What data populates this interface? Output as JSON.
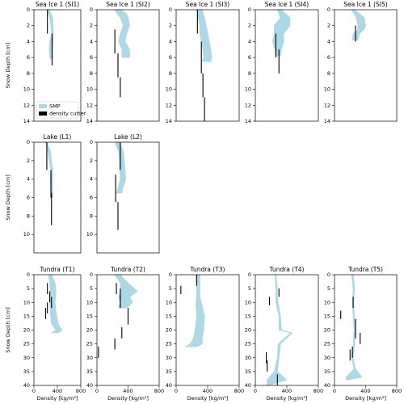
{
  "chart_data": [
    {
      "type": "profile",
      "title": "Sea Ice 1 (SI1)",
      "ylabel": "Snow Depth [cm]",
      "xlim": [
        0,
        800
      ],
      "ylim": [
        0,
        14
      ],
      "yticks": [
        0,
        2,
        4,
        6,
        8,
        10,
        12,
        14
      ],
      "legend": "lower left",
      "series": [
        {
          "name": "SMP",
          "color": "#add8e6",
          "depth": [
            0,
            1,
            2,
            3,
            4,
            5,
            6,
            6.2
          ],
          "low": [
            230,
            270,
            290,
            300,
            270,
            260,
            270,
            280
          ],
          "high": [
            260,
            320,
            330,
            330,
            330,
            320,
            320,
            310
          ]
        }
      ],
      "cutter": {
        "name": "density cutter",
        "color": "#000000",
        "values": [
          230,
          310
        ],
        "top": [
          0,
          3
        ],
        "bottom": [
          3,
          7
        ]
      }
    },
    {
      "type": "profile",
      "title": "Sea Ice 1 (SI2)",
      "xlim": [
        0,
        800
      ],
      "ylim": [
        0,
        14
      ],
      "yticks": [
        0,
        2,
        4,
        6,
        8,
        10,
        12,
        14
      ],
      "series": [
        {
          "color": "#add8e6",
          "depth": [
            0,
            0.5,
            1,
            2,
            3,
            4,
            5,
            6
          ],
          "low": [
            230,
            260,
            300,
            340,
            300,
            280,
            320,
            320
          ],
          "high": [
            300,
            380,
            400,
            420,
            380,
            360,
            420,
            420
          ]
        }
      ],
      "cutter": {
        "color": "#000000",
        "values": [
          230,
          270,
          300
        ],
        "top": [
          2.5,
          5.5,
          8.5
        ],
        "bottom": [
          5.5,
          8.5,
          11
        ]
      }
    },
    {
      "type": "profile",
      "title": "Sea Ice 1 (SI3)",
      "xlim": [
        0,
        800
      ],
      "ylim": [
        0,
        14
      ],
      "yticks": [
        0,
        2,
        4,
        6,
        8,
        10,
        12,
        14
      ],
      "series": [
        {
          "color": "#add8e6",
          "depth": [
            0,
            1,
            2,
            3,
            4,
            5,
            6,
            6.5
          ],
          "low": [
            260,
            280,
            300,
            300,
            320,
            340,
            350,
            330
          ],
          "high": [
            330,
            360,
            380,
            400,
            420,
            440,
            450,
            440
          ]
        }
      ],
      "cutter": {
        "color": "#000000",
        "values": [
          270,
          320,
          340,
          360
        ],
        "top": [
          0,
          4,
          8,
          11
        ],
        "bottom": [
          3,
          8,
          11,
          14
        ]
      }
    },
    {
      "type": "profile",
      "title": "Sea Ice 1 (SI4)",
      "xlim": [
        0,
        800
      ],
      "ylim": [
        0,
        14
      ],
      "yticks": [
        0,
        2,
        4,
        6,
        8,
        10,
        12,
        14
      ],
      "series": [
        {
          "color": "#add8e6",
          "depth": [
            0,
            1,
            2,
            3,
            4,
            5,
            5.8
          ],
          "low": [
            280,
            320,
            240,
            240,
            220,
            250,
            260
          ],
          "high": [
            330,
            440,
            440,
            360,
            360,
            330,
            320
          ]
        }
      ],
      "cutter": {
        "color": "#000000",
        "values": [
          260,
          300
        ],
        "top": [
          3,
          5
        ],
        "bottom": [
          6,
          8
        ]
      }
    },
    {
      "type": "profile",
      "title": "Sea Ice 1 (SI5)",
      "xlim": [
        0,
        800
      ],
      "ylim": [
        0,
        14
      ],
      "yticks": [
        0,
        2,
        4,
        6,
        8,
        10,
        12,
        14
      ],
      "series": [
        {
          "color": "#add8e6",
          "depth": [
            0,
            1,
            2,
            2.5,
            3,
            3.8
          ],
          "low": [
            220,
            280,
            300,
            300,
            240,
            230
          ],
          "high": [
            260,
            380,
            400,
            380,
            320,
            300
          ]
        }
      ],
      "cutter": {
        "color": "#000000",
        "values": [
          270
        ],
        "top": [
          2
        ],
        "bottom": [
          4
        ]
      }
    },
    {
      "type": "profile",
      "title": "Lake (L1)",
      "ylabel": "Snow Depth [cm]",
      "xlim": [
        0,
        800
      ],
      "ylim": [
        0,
        12
      ],
      "yticks": [
        0,
        2,
        4,
        6,
        8,
        10
      ],
      "series": [
        {
          "color": "#add8e6",
          "depth": [
            0,
            1,
            2,
            3,
            4,
            5,
            6
          ],
          "low": [
            200,
            240,
            260,
            290,
            280,
            290,
            290
          ],
          "high": [
            220,
            280,
            300,
            320,
            320,
            320,
            320
          ]
        }
      ],
      "cutter": {
        "color": "#000000",
        "values": [
          220,
          290,
          300
        ],
        "top": [
          0,
          3,
          5.5
        ],
        "bottom": [
          3,
          6,
          9
        ]
      }
    },
    {
      "type": "profile",
      "title": "Lake (L2)",
      "xlim": [
        0,
        800
      ],
      "ylim": [
        0,
        12
      ],
      "yticks": [
        0,
        2,
        4,
        6,
        8,
        10
      ],
      "series": [
        {
          "color": "#add8e6",
          "depth": [
            0,
            1,
            2,
            3,
            4,
            5,
            5.5
          ],
          "low": [
            230,
            280,
            290,
            290,
            300,
            270,
            250
          ],
          "high": [
            290,
            340,
            350,
            360,
            370,
            330,
            320
          ]
        }
      ],
      "cutter": {
        "color": "#000000",
        "values": [
          300,
          240,
          270
        ],
        "top": [
          0,
          3.5,
          6.5
        ],
        "bottom": [
          3,
          6.5,
          9.5
        ]
      }
    },
    {
      "type": "profile",
      "title": "Tundra (T1)",
      "ylabel": "Snow Depth [cm]",
      "xlabel": "Density [kg/m³]",
      "xlim": [
        0,
        800
      ],
      "xticks": [
        0,
        400,
        800
      ],
      "ylim": [
        0,
        40
      ],
      "yticks": [
        0,
        5,
        10,
        15,
        20,
        25,
        30,
        35,
        40
      ],
      "series": [
        {
          "color": "#add8e6",
          "depth": [
            0,
            3,
            6,
            10,
            14,
            18,
            20,
            21
          ],
          "low": [
            250,
            270,
            280,
            270,
            280,
            300,
            380,
            300
          ],
          "high": [
            300,
            360,
            380,
            360,
            380,
            420,
            480,
            420
          ]
        }
      ],
      "cutter": {
        "color": "#000000",
        "values": [
          230,
          270,
          300,
          230,
          200
        ],
        "top": [
          3,
          6,
          8,
          10,
          12
        ],
        "bottom": [
          7,
          10,
          12,
          14,
          16
        ]
      }
    },
    {
      "type": "profile",
      "title": "Tundra (T2)",
      "xlabel": "Density [kg/m³]",
      "xlim": [
        0,
        800
      ],
      "xticks": [
        0,
        400,
        800
      ],
      "ylim": [
        0,
        40
      ],
      "yticks": [
        0,
        5,
        10,
        15,
        20,
        25,
        30,
        35,
        40
      ],
      "series": [
        {
          "color": "#add8e6",
          "depth": [
            0,
            3,
            6,
            8,
            10,
            12
          ],
          "low": [
            230,
            300,
            300,
            280,
            300,
            280
          ],
          "high": [
            300,
            400,
            520,
            420,
            460,
            380
          ]
        }
      ],
      "cutter": {
        "color": "#000000",
        "values": [
          250,
          300,
          300,
          400,
          320,
          230,
          20
        ],
        "top": [
          3,
          5,
          8,
          12,
          19,
          23,
          26
        ],
        "bottom": [
          7,
          9,
          12,
          18,
          23,
          27,
          30
        ]
      }
    },
    {
      "type": "profile",
      "title": "Tundra (T3)",
      "xlabel": "Density [kg/m³]",
      "xlim": [
        0,
        800
      ],
      "xticks": [
        0,
        400,
        800
      ],
      "ylim": [
        0,
        40
      ],
      "yticks": [
        0,
        5,
        10,
        15,
        20,
        25,
        30,
        35,
        40
      ],
      "series": [
        {
          "color": "#add8e6",
          "depth": [
            0,
            4,
            8,
            10,
            15,
            20,
            23,
            25,
            26
          ],
          "low": [
            260,
            260,
            260,
            250,
            260,
            240,
            220,
            180,
            120
          ],
          "high": [
            300,
            300,
            300,
            320,
            360,
            350,
            330,
            330,
            260
          ]
        }
      ],
      "cutter": {
        "color": "#000000",
        "values": [
          260,
          60
        ],
        "top": [
          0,
          4
        ],
        "bottom": [
          4,
          7
        ]
      }
    },
    {
      "type": "profile",
      "title": "Tundra (T4)",
      "xlabel": "Density [kg/m³]",
      "xlim": [
        0,
        800
      ],
      "xticks": [
        0,
        400,
        800
      ],
      "ylim": [
        0,
        40
      ],
      "yticks": [
        0,
        5,
        10,
        15,
        20,
        25,
        30,
        35,
        40
      ],
      "series": [
        {
          "color": "#add8e6",
          "depth": [
            0,
            5,
            8,
            10,
            15,
            20,
            21,
            25,
            30,
            35,
            38,
            40
          ],
          "low": [
            250,
            260,
            260,
            260,
            300,
            300,
            450,
            290,
            280,
            240,
            150,
            150
          ],
          "high": [
            260,
            280,
            280,
            290,
            320,
            330,
            470,
            320,
            300,
            280,
            400,
            170
          ]
        }
      ],
      "cutter": {
        "color": "#000000",
        "values": [
          300,
          180,
          140,
          150,
          280
        ],
        "top": [
          5,
          8,
          28,
          31,
          36
        ],
        "bottom": [
          8,
          11,
          32,
          35,
          40
        ]
      }
    },
    {
      "type": "profile",
      "title": "Tundra (T5)",
      "xlabel": "Density [kg/m³]",
      "xlim": [
        0,
        800
      ],
      "xticks": [
        0,
        400,
        800
      ],
      "ylim": [
        0,
        40
      ],
      "yticks": [
        0,
        5,
        10,
        15,
        20,
        25,
        30,
        35,
        40
      ],
      "series": [
        {
          "color": "#add8e6",
          "depth": [
            0,
            5,
            10,
            15,
            20,
            25,
            30,
            34,
            37,
            38
          ],
          "low": [
            220,
            240,
            230,
            240,
            250,
            240,
            220,
            250,
            150,
            150
          ],
          "high": [
            240,
            260,
            240,
            260,
            270,
            260,
            240,
            270,
            350,
            180
          ]
        }
      ],
      "cutter": {
        "color": "#000000",
        "values": [
          240,
          80,
          270,
          270,
          330,
          230,
          200
        ],
        "top": [
          8,
          13,
          16,
          20,
          21,
          26,
          27
        ],
        "bottom": [
          12,
          16,
          20,
          23,
          25,
          30,
          31
        ]
      }
    }
  ]
}
